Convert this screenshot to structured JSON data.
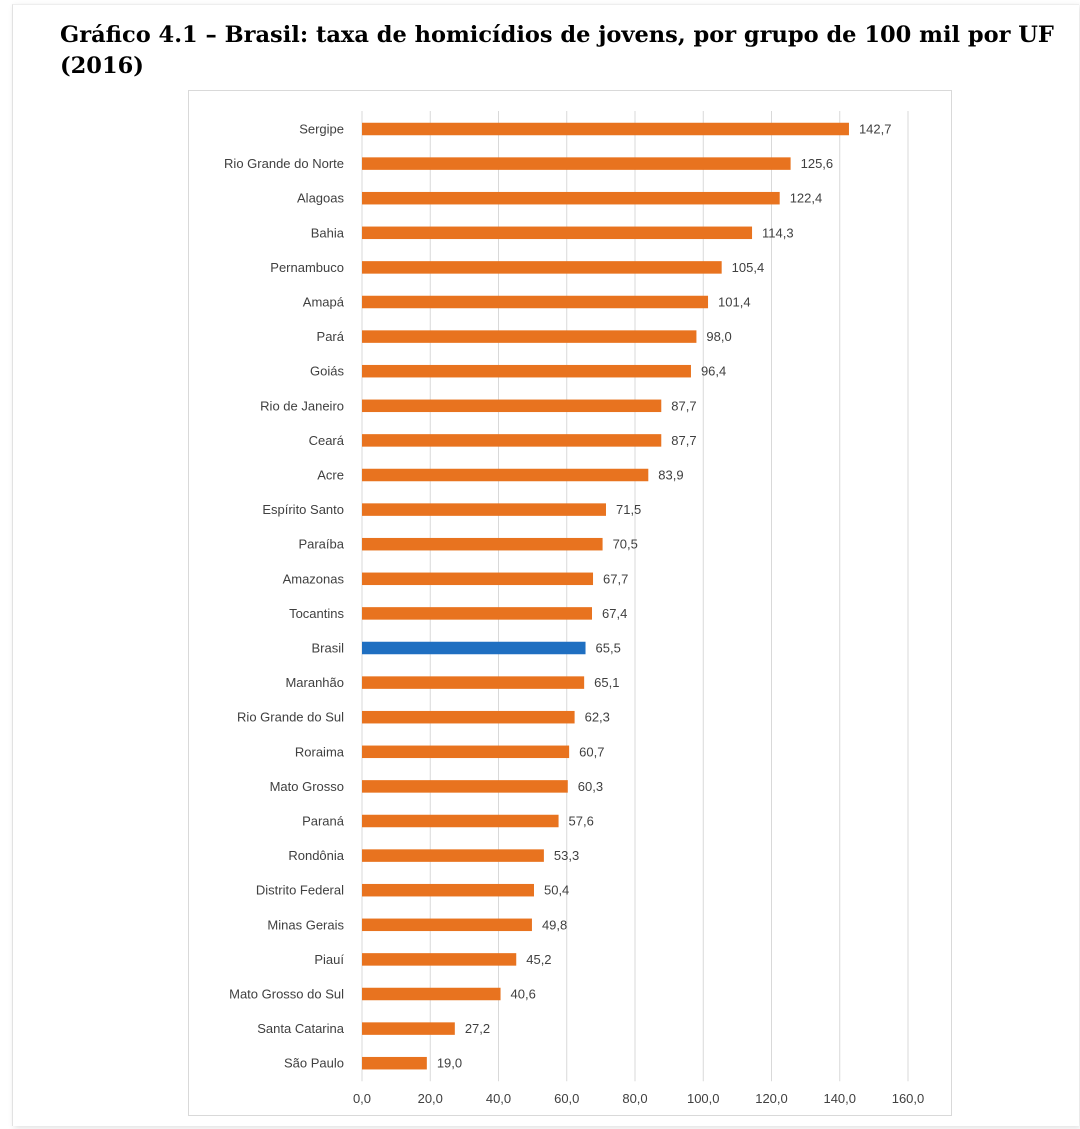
{
  "title": "Gráfico 4.1 – Brasil: taxa de homicídios de jovens, por grupo de 100 mil por UF (2016)",
  "chart_data": {
    "type": "bar",
    "orientation": "horizontal",
    "categories": [
      "Sergipe",
      "Rio Grande do Norte",
      "Alagoas",
      "Bahia",
      "Pernambuco",
      "Amapá",
      "Pará",
      "Goiás",
      "Rio de Janeiro",
      "Ceará",
      "Acre",
      "Espírito Santo",
      "Paraíba",
      "Amazonas",
      "Tocantins",
      "Brasil",
      "Maranhão",
      "Rio Grande do Sul",
      "Roraima",
      "Mato Grosso",
      "Paraná",
      "Rondônia",
      "Distrito Federal",
      "Minas Gerais",
      "Piauí",
      "Mato Grosso do Sul",
      "Santa Catarina",
      "São Paulo"
    ],
    "values": [
      142.7,
      125.6,
      122.4,
      114.3,
      105.4,
      101.4,
      98.0,
      96.4,
      87.7,
      87.7,
      83.9,
      71.5,
      70.5,
      67.7,
      67.4,
      65.5,
      65.1,
      62.3,
      60.7,
      60.3,
      57.6,
      53.3,
      50.4,
      49.8,
      45.2,
      40.6,
      27.2,
      19.0
    ],
    "value_labels": [
      "142,7",
      "125,6",
      "122,4",
      "114,3",
      "105,4",
      "101,4",
      "98,0",
      "96,4",
      "87,7",
      "87,7",
      "83,9",
      "71,5",
      "70,5",
      "67,7",
      "67,4",
      "65,5",
      "65,1",
      "62,3",
      "60,7",
      "60,3",
      "57,6",
      "53,3",
      "50,4",
      "49,8",
      "45,2",
      "40,6",
      "27,2",
      "19,0"
    ],
    "highlight_category": "Brasil",
    "colors": {
      "bar": "#e8731f",
      "highlight": "#1f6fc1",
      "grid": "#d9d9d9",
      "text": "#404040"
    },
    "xlim": [
      0,
      160
    ],
    "xticks": [
      0,
      20,
      40,
      60,
      80,
      100,
      120,
      140,
      160
    ],
    "xtick_labels": [
      "0,0",
      "20,0",
      "40,0",
      "60,0",
      "80,0",
      "100,0",
      "120,0",
      "140,0",
      "160,0"
    ],
    "grid": "vertical",
    "legend": "none"
  }
}
